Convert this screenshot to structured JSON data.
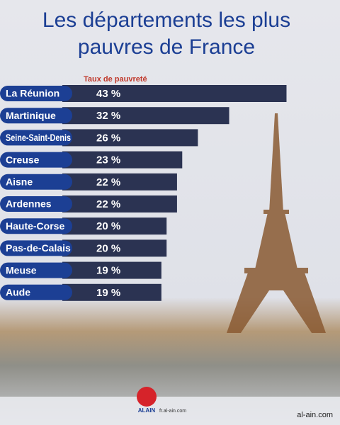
{
  "chart_data": {
    "type": "bar",
    "orientation": "horizontal",
    "title": [
      "Les départements les plus",
      "pauvres de France"
    ],
    "subtitle": "Taux de pauvreté",
    "categories": [
      "La Réunion",
      "Martinique",
      "Seine-Saint-Denis",
      "Creuse",
      "Aisne",
      "Ardennes",
      "Haute-Corse",
      "Pas-de-Calais",
      "Meuse",
      "Aude"
    ],
    "values": [
      43,
      32,
      26,
      23,
      22,
      22,
      20,
      20,
      19,
      19
    ],
    "value_labels": [
      "43 %",
      "32 %",
      "26 %",
      "23 %",
      "22 %",
      "22 %",
      "20 %",
      "20 %",
      "19 %",
      "19 %"
    ],
    "color": "#2b3352",
    "label_color": "#1c3f94"
  },
  "footer": {
    "logo": "ALAIN",
    "site": "fr.al-ain.com",
    "watermark": "al-ain.com"
  }
}
